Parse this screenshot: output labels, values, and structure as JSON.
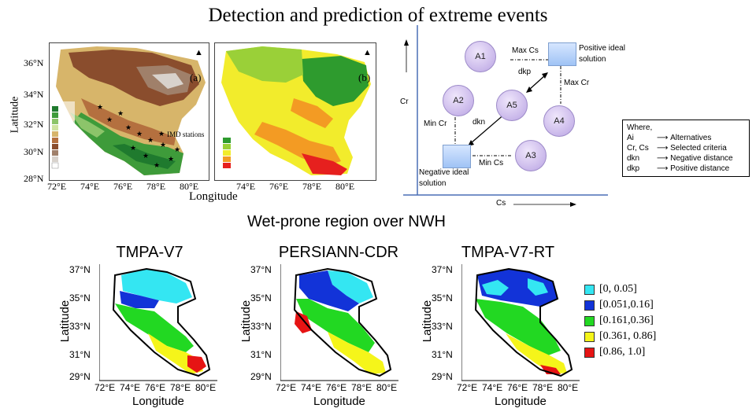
{
  "title": "Detection and prediction of extreme events",
  "maps_top": {
    "lat_ticks": [
      "36°N",
      "34°N",
      "32°N",
      "30°N",
      "28°N"
    ],
    "lon_ticks": [
      "72°E",
      "74°E",
      "76°E",
      "78°E",
      "80°E",
      "74°E",
      "76°E",
      "78°E",
      "80°E"
    ],
    "ylabel": "Latitude",
    "xlabel": "Longitude",
    "panel_a_label": "(a)",
    "panel_b_label": "(b)",
    "stations_label": "IMD stations",
    "elev_colors": [
      "#1f7a2e",
      "#3e9b3a",
      "#8cc46a",
      "#cfe3a1",
      "#d7b56a",
      "#b4703f",
      "#8a4d2d",
      "#a0806a",
      "#d8d2cc",
      "#ffffff"
    ],
    "rain_colors": [
      "#2e9b2e",
      "#9ad038",
      "#f2ec2c",
      "#f39b23",
      "#e6201e"
    ]
  },
  "topsis": {
    "cs_axis": "Cs",
    "cr_axis": "Cr",
    "a1": "A1",
    "a2": "A2",
    "a3": "A3",
    "a4": "A4",
    "a5": "A5",
    "pos_ideal_1": "Positive ideal",
    "pos_ideal_2": "solution",
    "neg_ideal_1": "Negative ideal",
    "neg_ideal_2": "solution",
    "max_cs": "Max Cs",
    "max_cr": "Max Cr",
    "min_cr": "Min Cr",
    "min_cs": "Min Cs",
    "dkp": "dkp",
    "dkn": "dkn",
    "where": {
      "title": "Where,",
      "rows": [
        {
          "sym": "Ai",
          "desc": "Alternatives"
        },
        {
          "sym": "Cr, Cs",
          "desc": "Selected criteria"
        },
        {
          "sym": "dkn",
          "desc": "Negative distance"
        },
        {
          "sym": "dkp",
          "desc": "Positive distance"
        }
      ]
    }
  },
  "wet_title": "Wet-prone region over NWH",
  "panels": [
    {
      "title": "TMPA-V7"
    },
    {
      "title": "PERSIANN-CDR"
    },
    {
      "title": "TMPA-V7-RT"
    }
  ],
  "bottom_axes": {
    "lat_ticks": [
      "37°N",
      "35°N",
      "33°N",
      "31°N",
      "29°N"
    ],
    "lon_ticks": [
      "72°E",
      "74°E",
      "76°E",
      "78°E",
      "80°E"
    ],
    "ylabel": "Latitude",
    "xlabel": "Longitude"
  },
  "legend": [
    {
      "label": "[0, 0.05]",
      "color": "#34e6f2"
    },
    {
      "label": "[0.051,0.16]",
      "color": "#1233d8"
    },
    {
      "label": "[0.161,0.36]",
      "color": "#22d822"
    },
    {
      "label": "[0.361, 0.86]",
      "color": "#f5f51a"
    },
    {
      "label": "[0.86, 1.0]",
      "color": "#e61414"
    }
  ]
}
